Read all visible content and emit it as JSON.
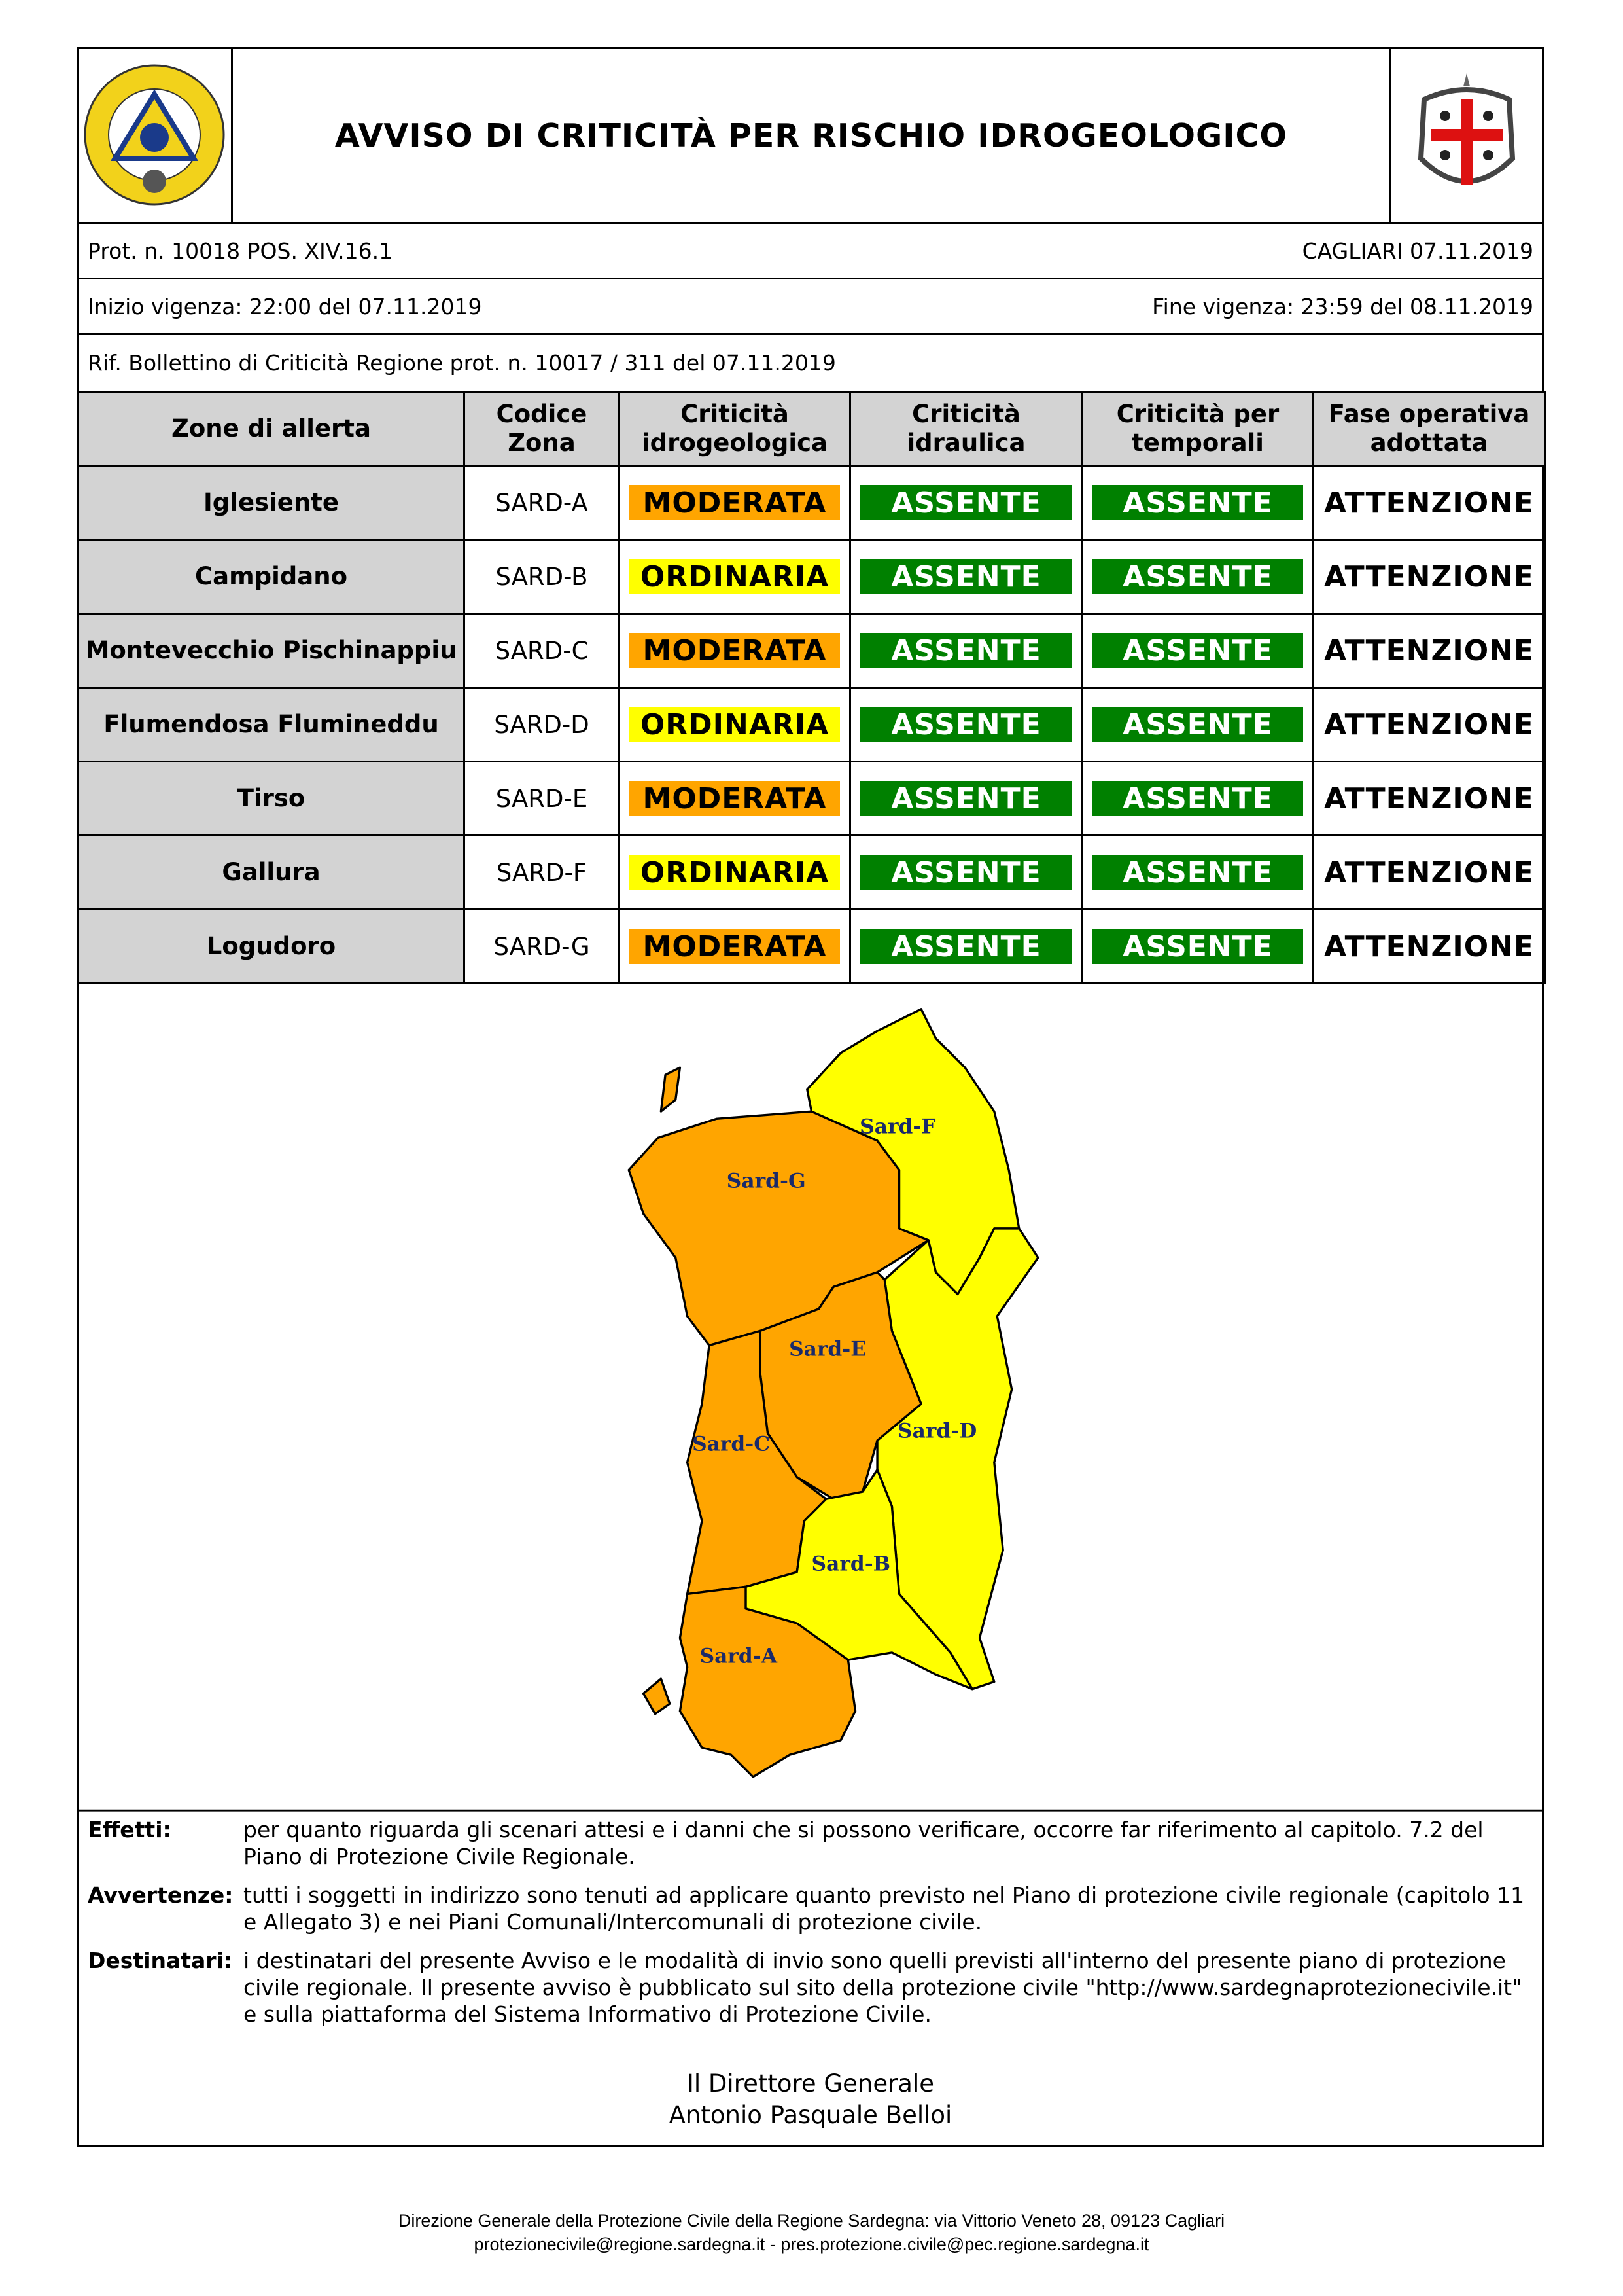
{
  "header": {
    "title": "AVVISO DI CRITICITÀ PER RISCHIO IDROGEOLOGICO",
    "logo_left": "REGIONE SARDEGNA PROTEZIONE CIVILE",
    "logo_right": "stemma-sardegna"
  },
  "meta": {
    "prot": "Prot. n. 10018 POS. XIV.16.1",
    "place_date": "CAGLIARI 07.11.2019",
    "inizio": "Inizio vigenza: 22:00 del 07.11.2019",
    "fine": "Fine vigenza: 23:59 del 08.11.2019",
    "rif": "Rif. Bollettino di Criticità Regione prot. n. 10017 / 311 del 07.11.2019"
  },
  "table": {
    "headers": [
      "Zone di allerta",
      "Codice Zona",
      "Criticità idrogeologica",
      "Criticità idraulica",
      "Criticità per temporali",
      "Fase operativa adottata"
    ],
    "rows": [
      {
        "zone": "Iglesiente",
        "code": "SARD-A",
        "idro": "MODERATA",
        "idra": "ASSENTE",
        "temp": "ASSENTE",
        "fase": "ATTENZIONE"
      },
      {
        "zone": "Campidano",
        "code": "SARD-B",
        "idro": "ORDINARIA",
        "idra": "ASSENTE",
        "temp": "ASSENTE",
        "fase": "ATTENZIONE"
      },
      {
        "zone": "Montevecchio Pischinappiu",
        "code": "SARD-C",
        "idro": "MODERATA",
        "idra": "ASSENTE",
        "temp": "ASSENTE",
        "fase": "ATTENZIONE"
      },
      {
        "zone": "Flumendosa Flumineddu",
        "code": "SARD-D",
        "idro": "ORDINARIA",
        "idra": "ASSENTE",
        "temp": "ASSENTE",
        "fase": "ATTENZIONE"
      },
      {
        "zone": "Tirso",
        "code": "SARD-E",
        "idro": "MODERATA",
        "idra": "ASSENTE",
        "temp": "ASSENTE",
        "fase": "ATTENZIONE"
      },
      {
        "zone": "Gallura",
        "code": "SARD-F",
        "idro": "ORDINARIA",
        "idra": "ASSENTE",
        "temp": "ASSENTE",
        "fase": "ATTENZIONE"
      },
      {
        "zone": "Logudoro",
        "code": "SARD-G",
        "idro": "MODERATA",
        "idra": "ASSENTE",
        "temp": "ASSENTE",
        "fase": "ATTENZIONE"
      }
    ]
  },
  "colors": {
    "MODERATA": "#FFA500",
    "ORDINARIA": "#FFFF00",
    "ASSENTE": "#008000",
    "header_gray": "#D3D3D3"
  },
  "map": {
    "labels": {
      "A": "Sard-A",
      "B": "Sard-B",
      "C": "Sard-C",
      "D": "Sard-D",
      "E": "Sard-E",
      "F": "Sard-F",
      "G": "Sard-G"
    }
  },
  "notes": [
    {
      "key": "Effetti:",
      "text": "per quanto riguarda gli scenari attesi e i danni che si possono verificare, occorre far riferimento al capitolo. 7.2 del Piano di Protezione Civile Regionale."
    },
    {
      "key": "Avvertenze:",
      "text": "tutti i soggetti in indirizzo sono tenuti ad applicare quanto previsto nel Piano di protezione civile regionale (capitolo 11 e Allegato 3) e nei Piani Comunali/Intercomunali di protezione civile."
    },
    {
      "key": "Destinatari:",
      "text": "i destinatari del presente Avviso e le modalità di invio sono quelli previsti all'interno del presente piano di protezione civile regionale. Il presente avviso è pubblicato sul sito della protezione civile \"http://www.sardegnaprotezionecivile.it\" e sulla piattaforma del Sistema Informativo di Protezione Civile."
    }
  ],
  "signature": {
    "role": "Il Direttore Generale",
    "name": "Antonio Pasquale Belloi"
  },
  "footer": {
    "line1": "Direzione Generale della Protezione Civile della Regione Sardegna: via Vittorio Veneto 28, 09123 Cagliari",
    "line2": "protezionecivile@regione.sardegna.it - pres.protezione.civile@pec.regione.sardegna.it"
  }
}
